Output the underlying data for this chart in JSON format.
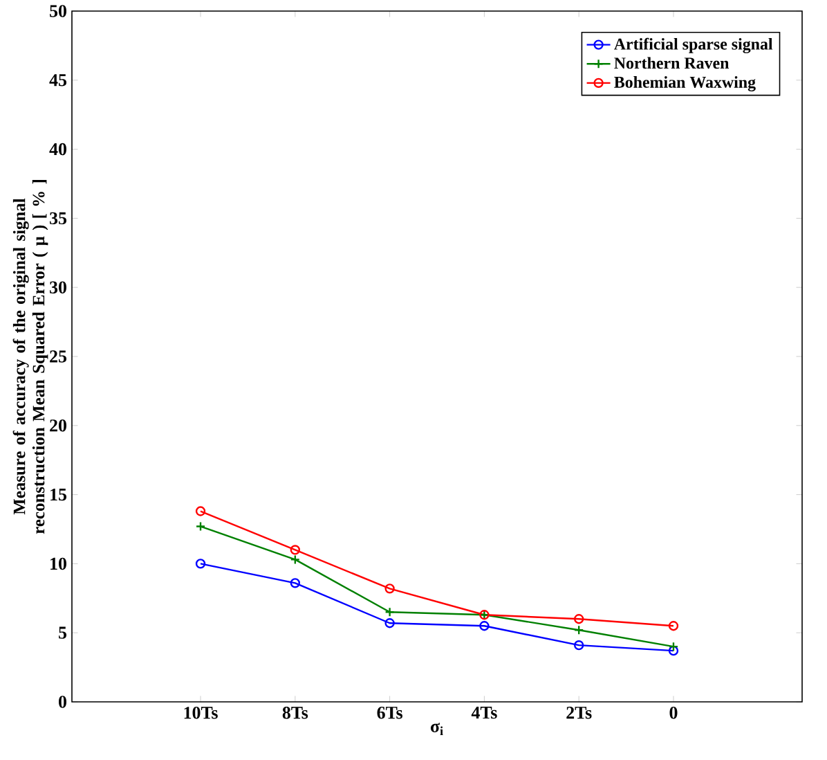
{
  "chart_data": {
    "type": "line",
    "xlabel": "σ$_{i}$",
    "ylabel": "Measure of accuracy of the original signal reconstruction Mean Squared Error ( μ ) [ % ]",
    "categories": [
      "10Ts",
      "8Ts",
      "6Ts",
      "4Ts",
      "2Ts",
      "0"
    ],
    "series": [
      {
        "name": "Artificial sparse signal",
        "color": "#0000ff",
        "marker": "circle",
        "values": [
          10.0,
          8.6,
          5.7,
          5.5,
          4.1,
          3.7
        ]
      },
      {
        "name": "Northern Raven",
        "color": "#008000",
        "marker": "cross",
        "values": [
          12.7,
          10.3,
          6.5,
          6.3,
          5.2,
          4.0
        ]
      },
      {
        "name": "Bohemian Waxwing",
        "color": "#ff0000",
        "marker": "circle",
        "values": [
          13.8,
          11.0,
          8.2,
          6.3,
          6.0,
          5.5
        ]
      }
    ],
    "ylim": [
      0,
      50
    ],
    "yticks": [
      0,
      5,
      10,
      15,
      20,
      25,
      30,
      35,
      40,
      45,
      50
    ],
    "legend": "top right",
    "grid": false,
    "line_style": "solid"
  }
}
